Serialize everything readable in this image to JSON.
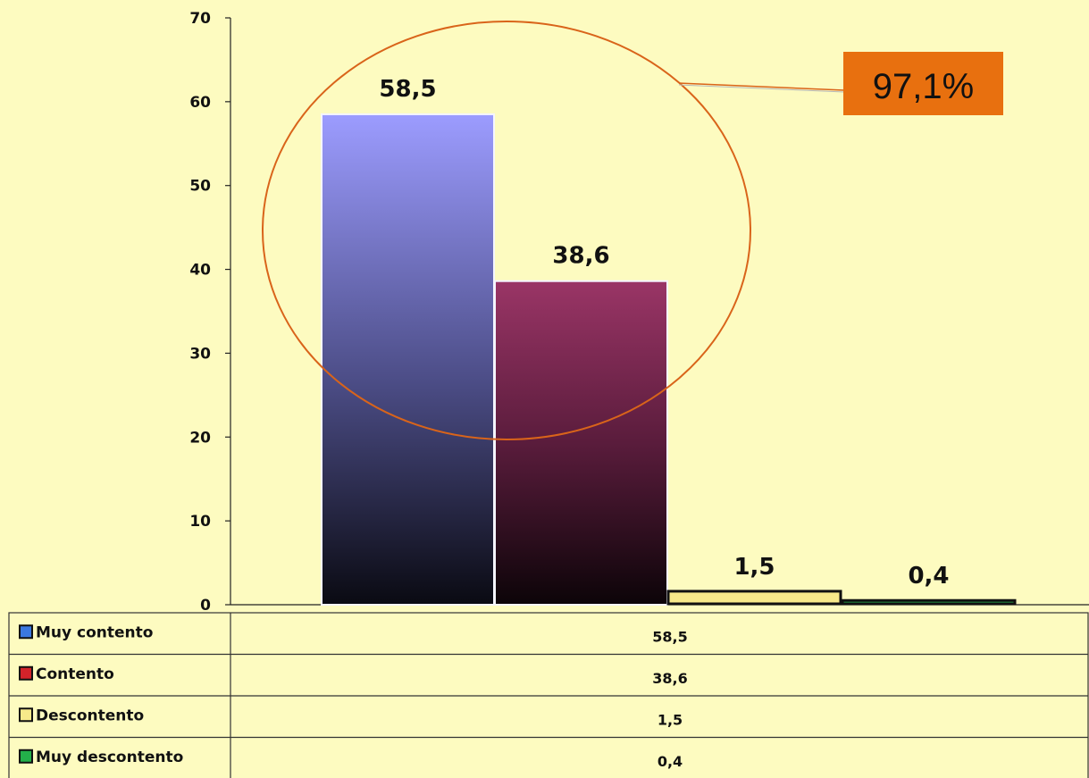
{
  "chart_data": {
    "type": "bar",
    "title": "",
    "xlabel": "",
    "ylabel": "",
    "ylim": [
      0,
      70
    ],
    "yticks": [
      0,
      10,
      20,
      30,
      40,
      50,
      60,
      70
    ],
    "grid": false,
    "legend_placement": "data-table-below",
    "series": [
      {
        "name": "Muy contento",
        "value": 58.5,
        "label": "58,5",
        "legend_color": "#3b78e0"
      },
      {
        "name": "Contento",
        "value": 38.6,
        "label": "38,6",
        "legend_color": "#d2232a"
      },
      {
        "name": "Descontento",
        "value": 1.5,
        "label": "1,5",
        "legend_color": "#f7e98a"
      },
      {
        "name": "Muy descontento",
        "value": 0.4,
        "label": "0,4",
        "legend_color": "#23b04a"
      }
    ],
    "annotation": {
      "text": "97,1%",
      "background": "#e8700f",
      "encircles": [
        "Muy contento",
        "Contento"
      ]
    }
  }
}
